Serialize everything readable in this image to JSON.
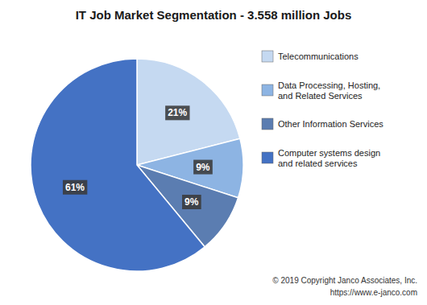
{
  "chart_data": {
    "type": "pie",
    "title": "IT Job Market Segmentation - 3.558 million Jobs",
    "categories": [
      "Telecommunications",
      "Data Processing, Hosting,\nand Related Services",
      "Other Information Services",
      "Computer systems design\nand related services"
    ],
    "values": [
      21,
      9,
      9,
      61
    ],
    "value_labels": [
      "21%",
      "9%",
      "9%",
      "61%"
    ],
    "data_labels": true,
    "colors": [
      "#c5d9f1",
      "#8db4e3",
      "#5b7db1",
      "#4472c4"
    ],
    "legend": "right",
    "annotations": [
      "© 2019 Copyright Janco Associates, Inc.",
      "https://www.e-janco.com"
    ]
  }
}
